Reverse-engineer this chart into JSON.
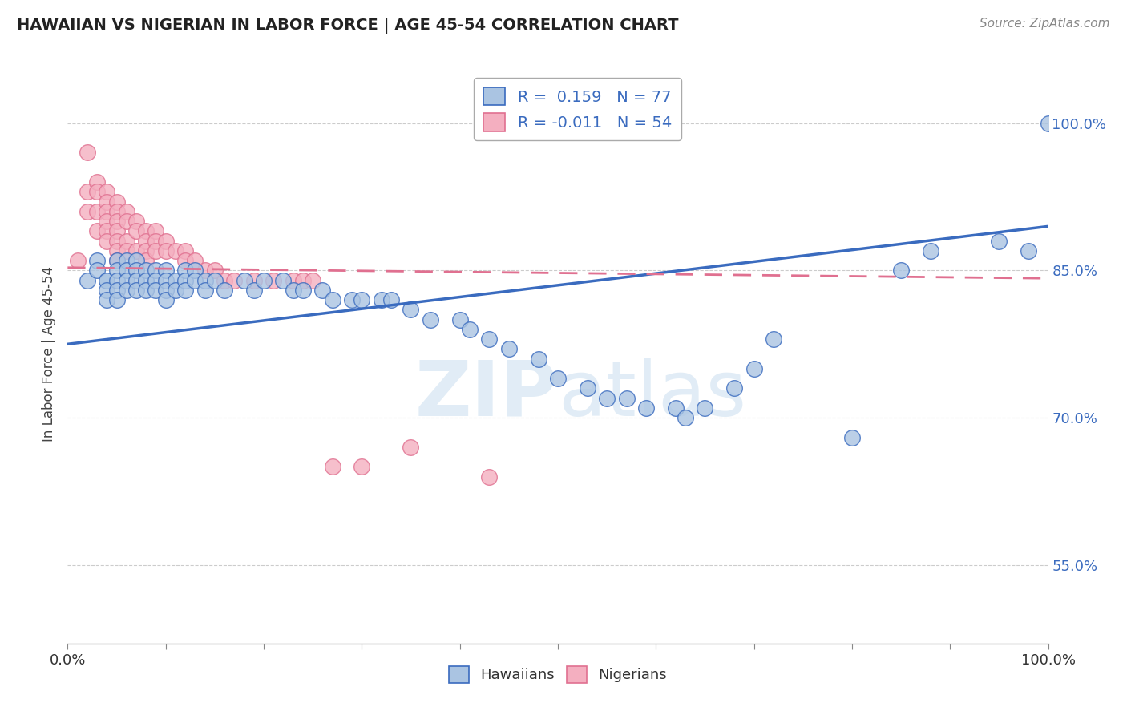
{
  "title": "HAWAIIAN VS NIGERIAN IN LABOR FORCE | AGE 45-54 CORRELATION CHART",
  "source": "Source: ZipAtlas.com",
  "ylabel": "In Labor Force | Age 45-54",
  "ytick_labels": [
    "55.0%",
    "70.0%",
    "85.0%",
    "100.0%"
  ],
  "ytick_values": [
    0.55,
    0.7,
    0.85,
    1.0
  ],
  "xrange": [
    0.0,
    1.0
  ],
  "yrange": [
    0.47,
    1.06
  ],
  "legend_blue_r": "0.159",
  "legend_blue_n": "77",
  "legend_pink_r": "-0.011",
  "legend_pink_n": "54",
  "hawaiians_color": "#aac4e2",
  "nigerians_color": "#f4afc0",
  "trend_blue": "#3a6bbf",
  "trend_pink": "#e07090",
  "blue_trend_x0": 0.0,
  "blue_trend_y0": 0.775,
  "blue_trend_x1": 1.0,
  "blue_trend_y1": 0.895,
  "pink_trend_x0": 0.0,
  "pink_trend_y0": 0.853,
  "pink_trend_x1": 1.0,
  "pink_trend_y1": 0.842,
  "xtick_positions": [
    0.0,
    0.1,
    0.2,
    0.3,
    0.4,
    0.5,
    0.6,
    0.7,
    0.8,
    0.9,
    1.0
  ],
  "hawaiians_x": [
    0.02,
    0.03,
    0.03,
    0.04,
    0.04,
    0.04,
    0.04,
    0.05,
    0.05,
    0.05,
    0.05,
    0.05,
    0.06,
    0.06,
    0.06,
    0.06,
    0.07,
    0.07,
    0.07,
    0.07,
    0.08,
    0.08,
    0.08,
    0.09,
    0.09,
    0.09,
    0.1,
    0.1,
    0.1,
    0.1,
    0.11,
    0.11,
    0.12,
    0.12,
    0.12,
    0.13,
    0.13,
    0.14,
    0.14,
    0.15,
    0.16,
    0.18,
    0.19,
    0.2,
    0.22,
    0.23,
    0.24,
    0.26,
    0.27,
    0.29,
    0.3,
    0.32,
    0.33,
    0.35,
    0.37,
    0.4,
    0.41,
    0.43,
    0.45,
    0.48,
    0.5,
    0.53,
    0.55,
    0.57,
    0.59,
    0.62,
    0.63,
    0.65,
    0.68,
    0.7,
    0.72,
    0.8,
    0.85,
    0.88,
    0.95,
    0.98,
    1.0
  ],
  "hawaiians_y": [
    0.84,
    0.86,
    0.85,
    0.84,
    0.84,
    0.83,
    0.82,
    0.86,
    0.85,
    0.84,
    0.83,
    0.82,
    0.86,
    0.85,
    0.84,
    0.83,
    0.86,
    0.85,
    0.84,
    0.83,
    0.85,
    0.84,
    0.83,
    0.85,
    0.84,
    0.83,
    0.85,
    0.84,
    0.83,
    0.82,
    0.84,
    0.83,
    0.85,
    0.84,
    0.83,
    0.85,
    0.84,
    0.84,
    0.83,
    0.84,
    0.83,
    0.84,
    0.83,
    0.84,
    0.84,
    0.83,
    0.83,
    0.83,
    0.82,
    0.82,
    0.82,
    0.82,
    0.82,
    0.81,
    0.8,
    0.8,
    0.79,
    0.78,
    0.77,
    0.76,
    0.74,
    0.73,
    0.72,
    0.72,
    0.71,
    0.71,
    0.7,
    0.71,
    0.73,
    0.75,
    0.78,
    0.68,
    0.85,
    0.87,
    0.88,
    0.87,
    1.0
  ],
  "nigerians_x": [
    0.01,
    0.02,
    0.02,
    0.02,
    0.03,
    0.03,
    0.03,
    0.03,
    0.04,
    0.04,
    0.04,
    0.04,
    0.04,
    0.04,
    0.05,
    0.05,
    0.05,
    0.05,
    0.05,
    0.05,
    0.05,
    0.06,
    0.06,
    0.06,
    0.06,
    0.07,
    0.07,
    0.07,
    0.08,
    0.08,
    0.08,
    0.08,
    0.09,
    0.09,
    0.09,
    0.1,
    0.1,
    0.11,
    0.12,
    0.12,
    0.13,
    0.14,
    0.15,
    0.16,
    0.17,
    0.19,
    0.21,
    0.23,
    0.24,
    0.25,
    0.27,
    0.3,
    0.35,
    0.43
  ],
  "nigerians_y": [
    0.86,
    0.97,
    0.93,
    0.91,
    0.94,
    0.93,
    0.91,
    0.89,
    0.93,
    0.92,
    0.91,
    0.9,
    0.89,
    0.88,
    0.92,
    0.91,
    0.9,
    0.89,
    0.88,
    0.87,
    0.86,
    0.91,
    0.9,
    0.88,
    0.87,
    0.9,
    0.89,
    0.87,
    0.89,
    0.88,
    0.87,
    0.86,
    0.89,
    0.88,
    0.87,
    0.88,
    0.87,
    0.87,
    0.87,
    0.86,
    0.86,
    0.85,
    0.85,
    0.84,
    0.84,
    0.84,
    0.84,
    0.84,
    0.84,
    0.84,
    0.65,
    0.65,
    0.67,
    0.64
  ]
}
